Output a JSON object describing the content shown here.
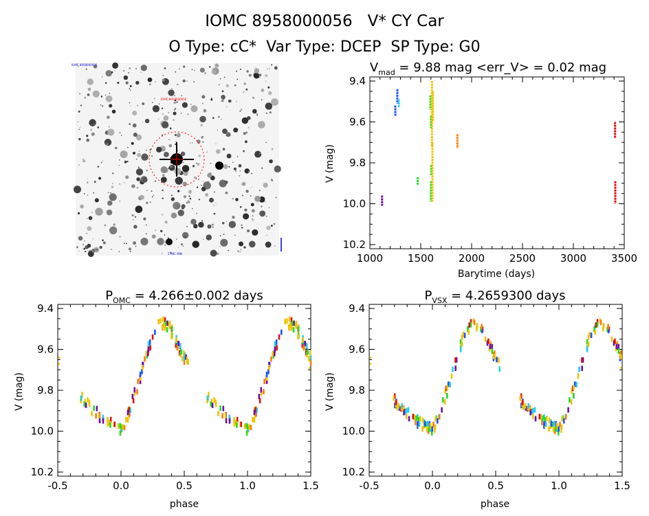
{
  "header": {
    "title": "IOMC 8958000056   V* CY Car",
    "subtitle": "O Type: cC*  Var Type: DCEP  SP Type: G0"
  },
  "image_panel": {
    "top_left_label": "IOMC 8958000056",
    "red_label": "IOMC 8958000056",
    "bottom_label": "2 ARC MIN",
    "colors": {
      "target_circle": "#ff0000",
      "labels": "#0000cc"
    }
  },
  "colors": {
    "violet": "#6a0dad",
    "blue": "#1f4fff",
    "cyan": "#22ccee",
    "green": "#22dd22",
    "yellow": "#f2c200",
    "orange": "#ff7a00",
    "red": "#dd1111"
  },
  "chart_data": [
    {
      "id": "lightcurve",
      "type": "scatter",
      "title_parts": {
        "main": "V",
        "sub": "mad",
        "rest": " = 9.88 mag <err_V> = 0.02 mag"
      },
      "xlabel": "Barytime (days)",
      "ylabel": "V (mag)",
      "xlim": [
        1000,
        3500
      ],
      "ylim": [
        10.22,
        9.38
      ],
      "xticks": [
        1000,
        1500,
        2000,
        2500,
        3000,
        3500
      ],
      "yticks": [
        9.4,
        9.6,
        9.8,
        10.0,
        10.2
      ],
      "ytick_labels": [
        "9.4",
        "9.6",
        "9.8",
        "10.0",
        "10.2"
      ],
      "series": [
        {
          "color": "violet",
          "segments": [
            [
              1120,
              9.96,
              10.01
            ]
          ]
        },
        {
          "color": "blue",
          "segments": [
            [
              1250,
              9.52,
              9.57
            ]
          ]
        },
        {
          "color": "blue",
          "segments": [
            [
              1270,
              9.44,
              9.51
            ]
          ]
        },
        {
          "color": "cyan",
          "segments": [
            [
              1285,
              9.49,
              9.53
            ]
          ]
        },
        {
          "color": "green",
          "segments": [
            [
              1470,
              9.87,
              9.91
            ]
          ]
        },
        {
          "color": "green",
          "segments": [
            [
              1595,
              9.47,
              9.54
            ],
            [
              1600,
              9.57,
              9.63
            ],
            [
              1603,
              9.81,
              9.86
            ],
            [
              1600,
              9.89,
              9.99
            ]
          ]
        },
        {
          "color": "yellow",
          "segments": [
            [
              1610,
              9.4,
              9.72
            ],
            [
              1615,
              9.7,
              9.99
            ],
            [
              1620,
              9.45,
              9.6
            ]
          ]
        },
        {
          "color": "orange",
          "segments": [
            [
              1860,
              9.66,
              9.73
            ]
          ]
        },
        {
          "color": "red",
          "segments": [
            [
              3410,
              9.6,
              9.68
            ],
            [
              3412,
              9.89,
              10.0
            ]
          ]
        }
      ]
    },
    {
      "id": "phase_omc",
      "type": "scatter",
      "title_parts": {
        "main": "P",
        "sub": "OMC",
        "rest": " = 4.266±0.002 days"
      },
      "xlabel": "phase",
      "ylabel": "V (mag)",
      "xlim": [
        -0.5,
        1.5
      ],
      "ylim": [
        10.22,
        9.38
      ],
      "xticks": [
        -0.5,
        0.0,
        0.5,
        1.0,
        1.5
      ],
      "xtick_labels": [
        "-0.5",
        "0.0",
        "0.5",
        "1.0",
        "1.5"
      ],
      "yticks": [
        9.4,
        9.6,
        9.8,
        10.0,
        10.2
      ],
      "ytick_labels": [
        "9.4",
        "9.6",
        "9.8",
        "10.0",
        "10.2"
      ],
      "phased_curve": [
        [
          0.0,
          9.98
        ],
        [
          0.05,
          9.92
        ],
        [
          0.1,
          9.82
        ],
        [
          0.15,
          9.73
        ],
        [
          0.2,
          9.62
        ],
        [
          0.25,
          9.52
        ],
        [
          0.3,
          9.47
        ],
        [
          0.33,
          9.46
        ],
        [
          0.38,
          9.48
        ],
        [
          0.42,
          9.53
        ],
        [
          0.47,
          9.6
        ],
        [
          0.52,
          9.66
        ],
        [
          0.6,
          9.74
        ],
        [
          0.7,
          9.84
        ],
        [
          0.8,
          9.9
        ],
        [
          0.9,
          9.95
        ],
        [
          1.0,
          9.98
        ]
      ]
    },
    {
      "id": "phase_vsx",
      "type": "scatter",
      "title_parts": {
        "main": "P",
        "sub": "VSX",
        "rest": " = 4.2659300 days"
      },
      "xlabel": "phase",
      "ylabel": "V (mag)",
      "xlim": [
        -0.5,
        1.5
      ],
      "ylim": [
        10.22,
        9.38
      ],
      "xticks": [
        -0.5,
        0.0,
        0.5,
        1.0,
        1.5
      ],
      "xtick_labels": [
        "-0.5",
        "0.0",
        "0.5",
        "1.0",
        "1.5"
      ],
      "yticks": [
        9.4,
        9.6,
        9.8,
        10.0,
        10.2
      ],
      "ytick_labels": [
        "9.4",
        "9.6",
        "9.8",
        "10.0",
        "10.2"
      ],
      "phased_curve": [
        [
          0.0,
          9.98
        ],
        [
          0.05,
          9.92
        ],
        [
          0.1,
          9.82
        ],
        [
          0.15,
          9.73
        ],
        [
          0.2,
          9.62
        ],
        [
          0.25,
          9.52
        ],
        [
          0.3,
          9.47
        ],
        [
          0.33,
          9.46
        ],
        [
          0.38,
          9.48
        ],
        [
          0.42,
          9.53
        ],
        [
          0.47,
          9.6
        ],
        [
          0.52,
          9.66
        ],
        [
          0.6,
          9.74
        ],
        [
          0.7,
          9.84
        ],
        [
          0.8,
          9.9
        ],
        [
          0.9,
          9.95
        ],
        [
          1.0,
          9.98
        ]
      ]
    }
  ]
}
